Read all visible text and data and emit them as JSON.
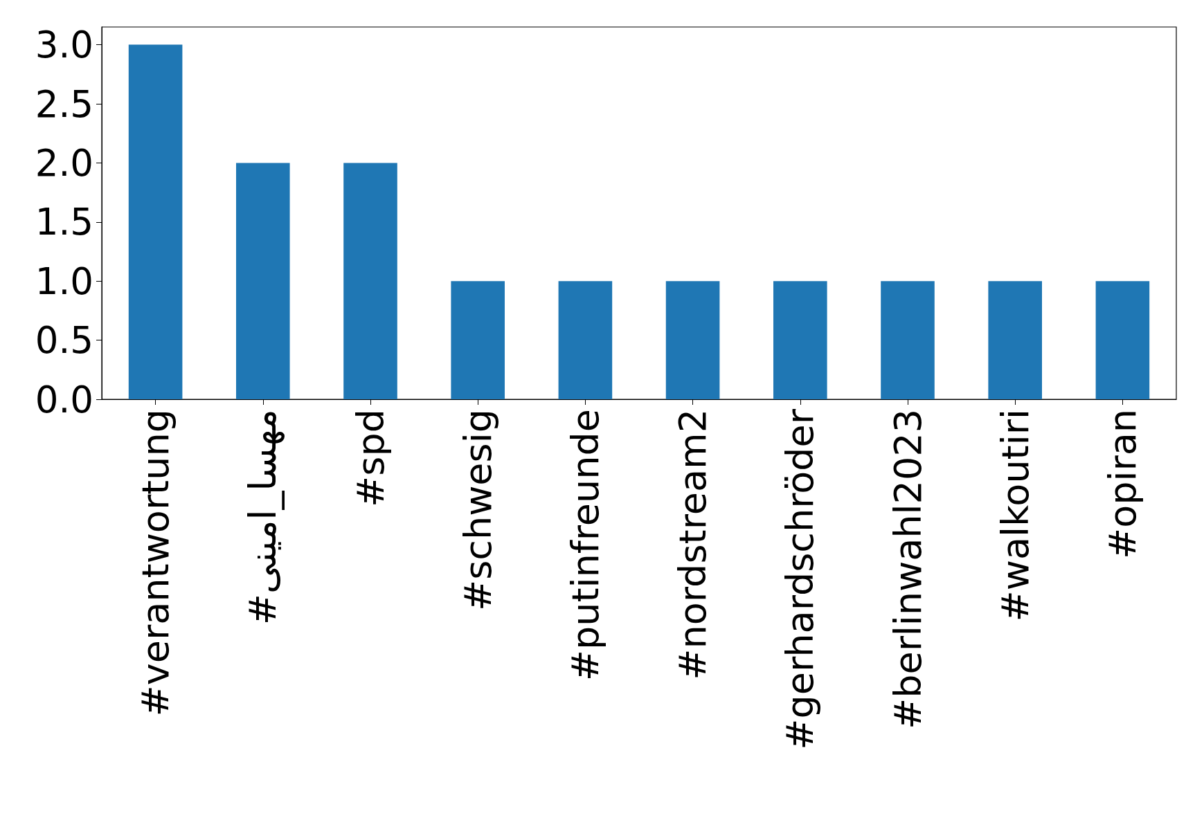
{
  "chart_data": {
    "type": "bar",
    "categories": [
      "#verantwortung",
      "#مهسا_امینی",
      "#spd",
      "#schwesig",
      "#putinfreunde",
      "#nordstream2",
      "#gerhardschröder",
      "#berlinwahl2023",
      "#walkoutiri",
      "#opiran"
    ],
    "values": [
      3,
      2,
      2,
      1,
      1,
      1,
      1,
      1,
      1,
      1
    ],
    "color": "#1f77b4",
    "ylim": [
      0,
      3.15
    ],
    "yticks": [
      {
        "value": 0,
        "label": "0.0"
      },
      0.5,
      {
        "value": 1,
        "label": "1.0"
      },
      1.5,
      {
        "value": 2,
        "label": "2.0"
      },
      2.5,
      {
        "value": 3,
        "label": "3.0"
      }
    ],
    "grid": false
  }
}
